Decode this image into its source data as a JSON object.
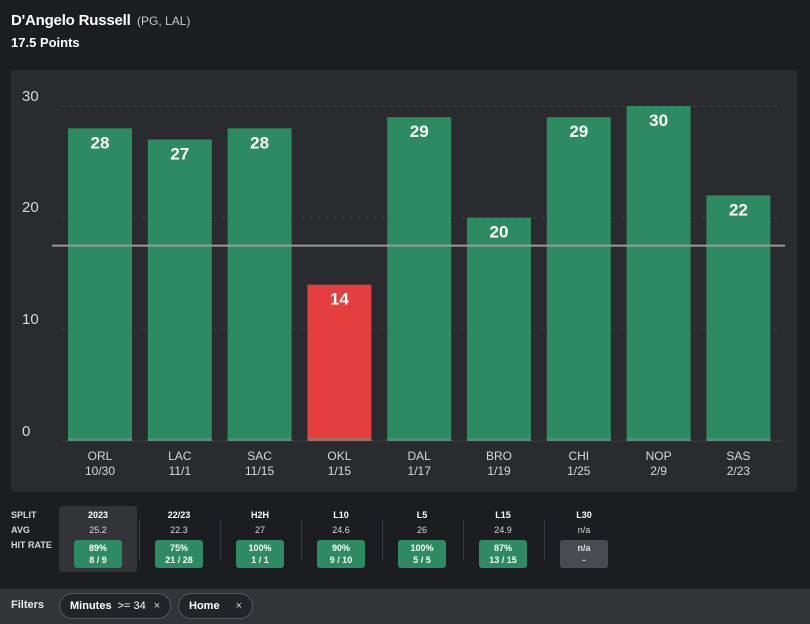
{
  "player": {
    "name": "D'Angelo Russell",
    "position_team": "(PG, LAL)",
    "line_value": "17.5",
    "line_unit": "Points"
  },
  "colors": {
    "hit": "#2e8b61",
    "miss": "#e53e3e",
    "line": "#9a9a9a"
  },
  "chart_data": {
    "type": "bar",
    "y_ticks": [
      "30",
      "20",
      "10",
      "0"
    ],
    "ylim": [
      0,
      30
    ],
    "prop_line": 17.5,
    "bars": [
      {
        "team": "ORL",
        "date": "10/30",
        "value": 28,
        "hit": true
      },
      {
        "team": "LAC",
        "date": "11/1",
        "value": 27,
        "hit": true
      },
      {
        "team": "SAC",
        "date": "11/15",
        "value": 28,
        "hit": true
      },
      {
        "team": "OKL",
        "date": "1/15",
        "value": 14,
        "hit": false
      },
      {
        "team": "DAL",
        "date": "1/17",
        "value": 29,
        "hit": true
      },
      {
        "team": "BRO",
        "date": "1/19",
        "value": 20,
        "hit": true
      },
      {
        "team": "CHI",
        "date": "1/25",
        "value": 29,
        "hit": true
      },
      {
        "team": "NOP",
        "date": "2/9",
        "value": 30,
        "hit": true
      },
      {
        "team": "SAS",
        "date": "2/23",
        "value": 22,
        "hit": true
      }
    ]
  },
  "splits": {
    "labels": {
      "split": "SPLIT",
      "avg": "AVG",
      "hit_rate": "HIT RATE"
    },
    "columns": [
      {
        "period": "2023",
        "avg": "25.2",
        "pct": "89%",
        "ratio": "8 / 9",
        "active": true
      },
      {
        "period": "22/23",
        "avg": "22.3",
        "pct": "75%",
        "ratio": "21 / 28",
        "active": false
      },
      {
        "period": "H2H",
        "avg": "27",
        "pct": "100%",
        "ratio": "1 / 1",
        "active": false
      },
      {
        "period": "L10",
        "avg": "24.6",
        "pct": "90%",
        "ratio": "9 / 10",
        "active": false
      },
      {
        "period": "L5",
        "avg": "26",
        "pct": "100%",
        "ratio": "5 / 5",
        "active": false
      },
      {
        "period": "L15",
        "avg": "24.9",
        "pct": "87%",
        "ratio": "13 / 15",
        "active": false
      },
      {
        "period": "L30",
        "avg": "n/a",
        "pct": "n/a",
        "ratio": "-",
        "active": false,
        "na": true
      }
    ]
  },
  "filters": {
    "label": "Filters",
    "minutes": {
      "name": "Minutes",
      "op": ">= 34",
      "close": "×"
    },
    "home": {
      "name": "Home",
      "close": "×"
    }
  }
}
